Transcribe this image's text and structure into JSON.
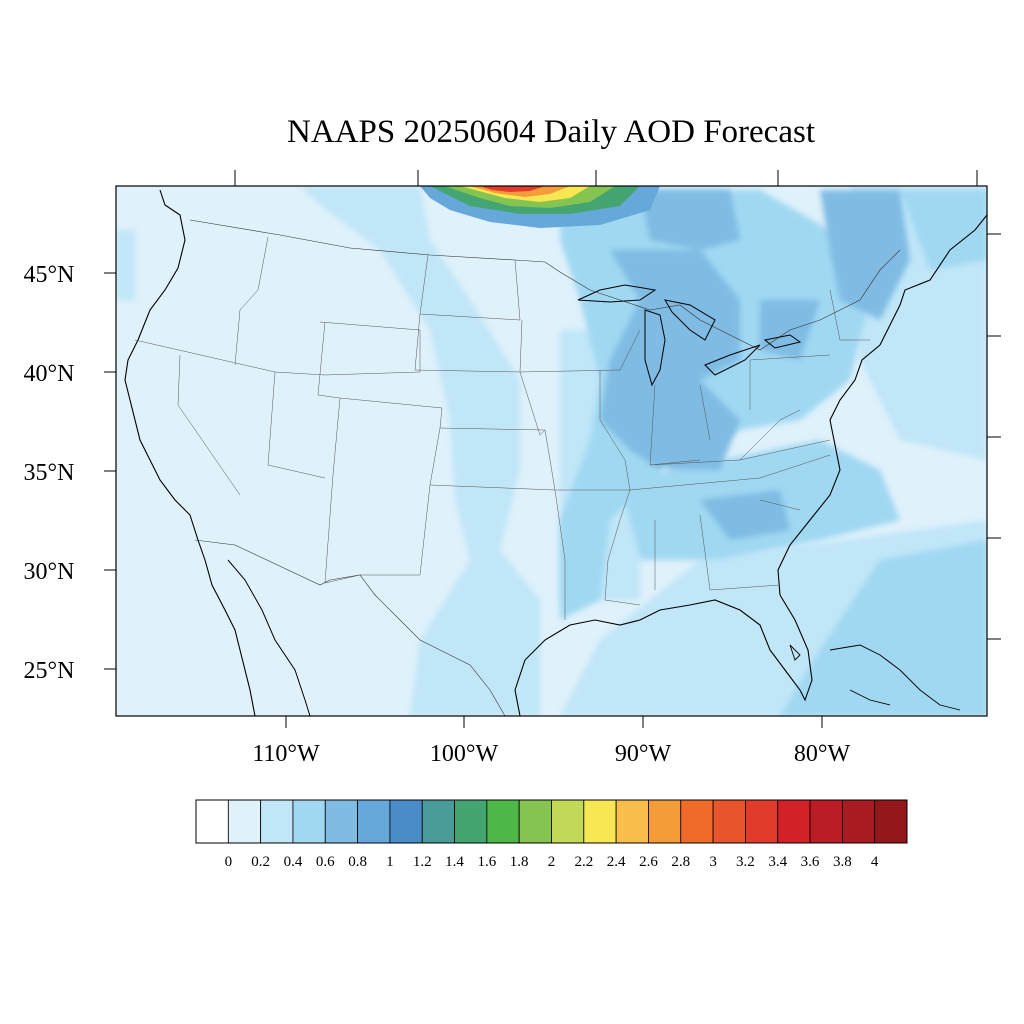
{
  "title": "NAAPS 20250604 Daily AOD Forecast",
  "map": {
    "lat_labels": [
      "45°N",
      "40°N",
      "35°N",
      "30°N",
      "25°N"
    ],
    "lon_labels": [
      "110°W",
      "100°W",
      "90°W",
      "80°W"
    ],
    "colors": {
      "background": "#dff1fb",
      "level_02_04": "#c0e6f8",
      "level_04_06": "#a0d8f2",
      "level_06_08": "#7fbbe3",
      "plume_green": "#3fae49",
      "plume_yellow": "#f7e753",
      "plume_orange": "#f49c3a",
      "plume_red": "#e03b2b"
    }
  },
  "colorbar": {
    "labels": [
      "0",
      "0.2",
      "0.4",
      "0.6",
      "0.8",
      "1",
      "1.2",
      "1.4",
      "1.6",
      "1.8",
      "2",
      "2.2",
      "2.4",
      "2.6",
      "2.8",
      "3",
      "3.2",
      "3.4",
      "3.6",
      "3.8",
      "4"
    ],
    "colors": [
      "#ffffff",
      "#dff1fb",
      "#c0e6f8",
      "#a0d8f2",
      "#7fbbe3",
      "#66a8da",
      "#4a8cc8",
      "#4a9c9a",
      "#45a572",
      "#4db848",
      "#86c452",
      "#c2d857",
      "#f7e753",
      "#f7bf4a",
      "#f49c3a",
      "#f06b2a",
      "#e8552d",
      "#e03b2b",
      "#d32128",
      "#bb1c25",
      "#a81b22",
      "#94171c"
    ]
  }
}
